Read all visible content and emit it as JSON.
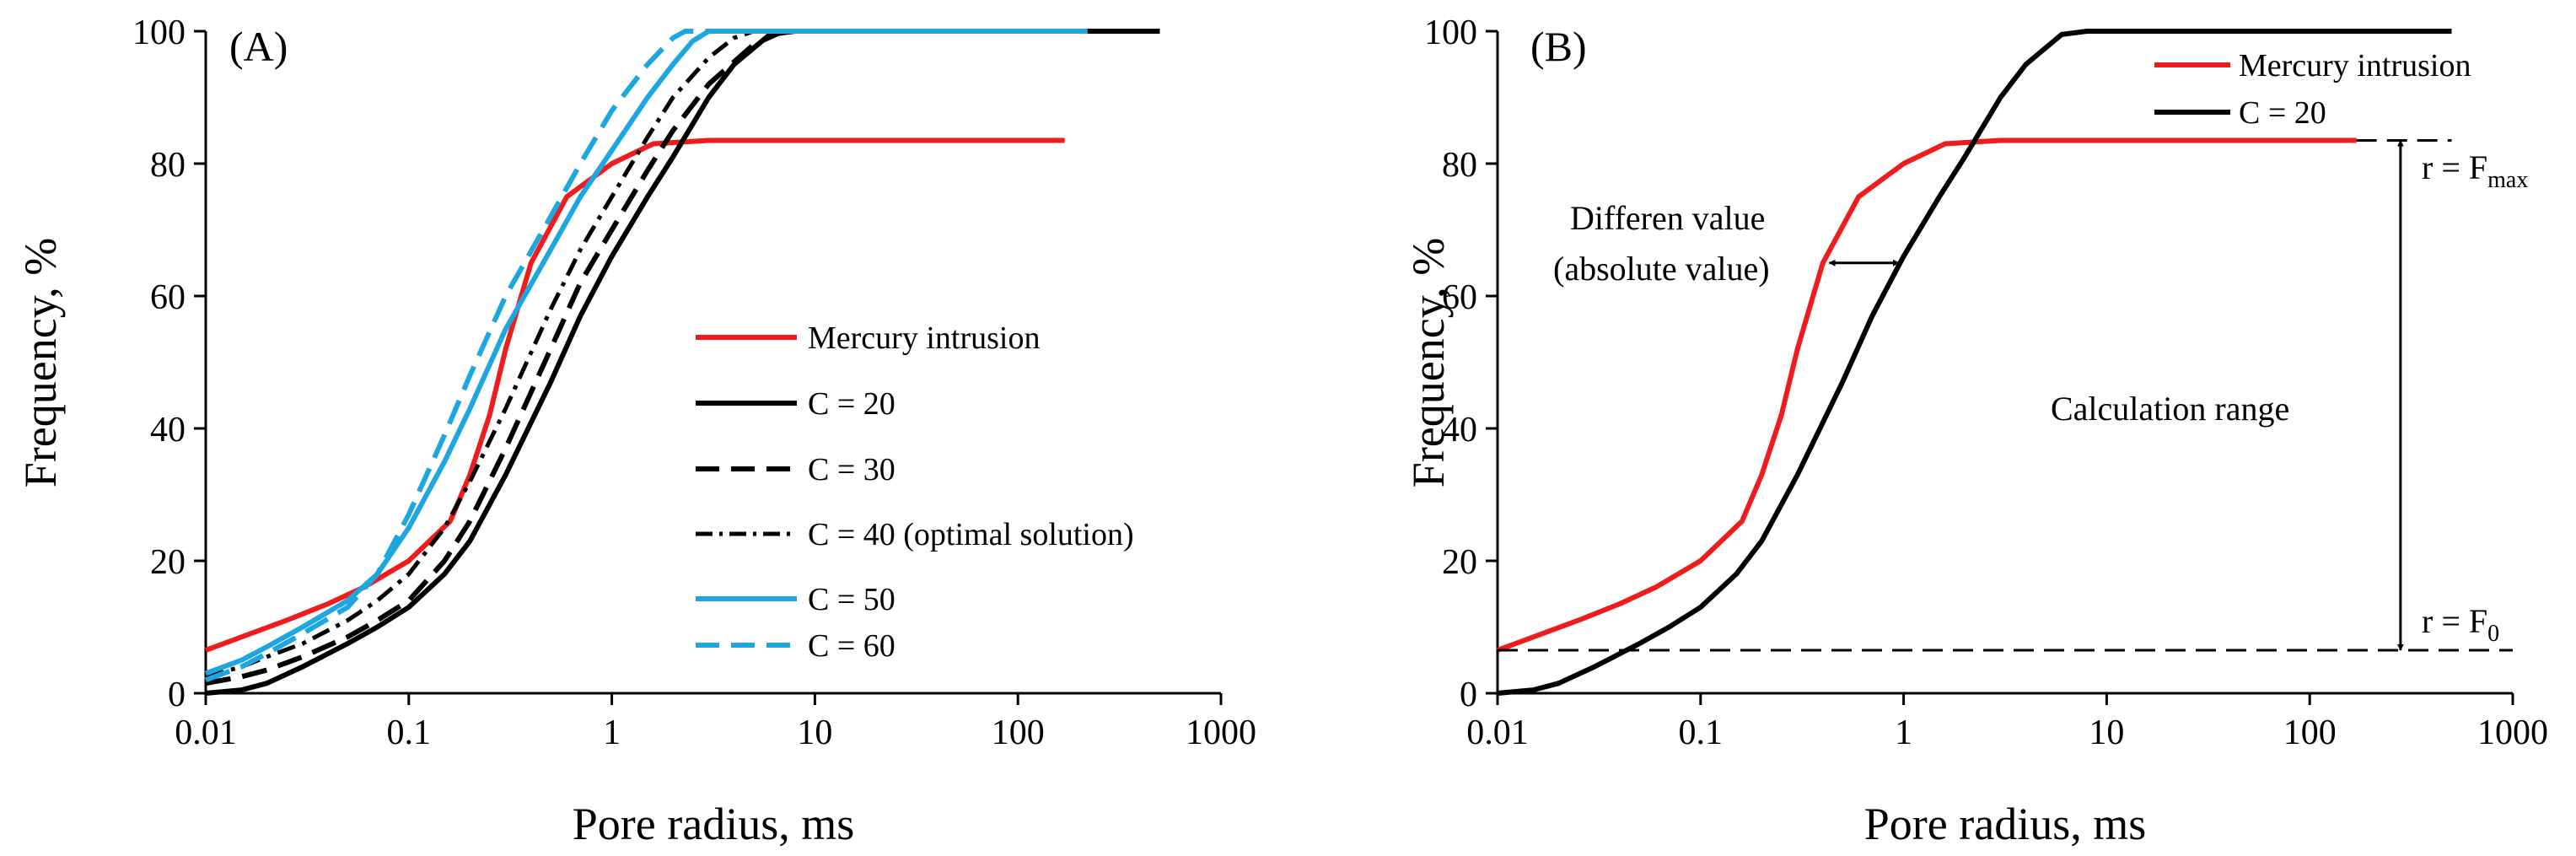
{
  "figure": {
    "panels": [
      "A",
      "B"
    ]
  },
  "colors": {
    "mercury": "#ee1c1c",
    "black": "#000000",
    "cyan": "#1ea6e0"
  },
  "chart_data": [
    {
      "type": "line",
      "panel_label": "(A)",
      "xlabel": "Pore radius, ms",
      "ylabel": "Frequency, %",
      "xscale": "log",
      "xlim": [
        0.01,
        1000
      ],
      "ylim": [
        0,
        100
      ],
      "x_ticks": [
        "0.01",
        "0.1",
        "1",
        "10",
        "100",
        "1000"
      ],
      "y_ticks": [
        "0",
        "20",
        "40",
        "60",
        "80",
        "100"
      ],
      "legend_position": "lower-right",
      "series": [
        {
          "name": "Mercury intrusion",
          "color": "#ee1c1c",
          "style": "solid",
          "x": [
            0.01,
            0.015,
            0.025,
            0.04,
            0.06,
            0.1,
            0.16,
            0.2,
            0.25,
            0.3,
            0.4,
            0.6,
            1.0,
            1.6,
            3,
            10,
            50,
            170
          ],
          "y": [
            6.5,
            8.5,
            11,
            13.5,
            16,
            20,
            26,
            33,
            42,
            52,
            65,
            75,
            80,
            83,
            83.5,
            83.5,
            83.5,
            83.5
          ]
        },
        {
          "name": "C = 20",
          "color": "#000000",
          "style": "solid",
          "x": [
            0.01,
            0.015,
            0.02,
            0.03,
            0.05,
            0.07,
            0.1,
            0.15,
            0.2,
            0.3,
            0.5,
            0.7,
            1.0,
            1.5,
            2.0,
            3.0,
            4.0,
            6.0,
            8.0,
            20,
            100,
            500
          ],
          "y": [
            0,
            0.5,
            1.5,
            4,
            7.5,
            10,
            13,
            18,
            23,
            33,
            47,
            57,
            66,
            75,
            81,
            90,
            95,
            99.5,
            100,
            100,
            100,
            100
          ]
        },
        {
          "name": "C = 30",
          "color": "#000000",
          "style": "dash",
          "x": [
            0.01,
            0.015,
            0.02,
            0.03,
            0.05,
            0.07,
            0.1,
            0.15,
            0.2,
            0.3,
            0.5,
            0.7,
            1.0,
            1.5,
            2.0,
            3.0,
            5.0,
            7.0,
            10,
            100,
            500
          ],
          "y": [
            1.5,
            2.5,
            3.5,
            5.5,
            8.5,
            11,
            14,
            20,
            26,
            37,
            52,
            62,
            70,
            79,
            85,
            92,
            98,
            100,
            100,
            100,
            100
          ]
        },
        {
          "name": "C = 40 (optimal solution)",
          "color": "#000000",
          "style": "dashdot",
          "x": [
            0.01,
            0.015,
            0.02,
            0.03,
            0.05,
            0.07,
            0.1,
            0.15,
            0.2,
            0.3,
            0.5,
            0.7,
            1.0,
            1.5,
            2.0,
            3.0,
            4.0,
            5.0,
            10,
            100,
            500
          ],
          "y": [
            2.5,
            4,
            5.5,
            7.5,
            11,
            14,
            18,
            25,
            32,
            43,
            58,
            67,
            75,
            84,
            90,
            96,
            99,
            100,
            100,
            100,
            100
          ]
        },
        {
          "name": "C = 50",
          "color": "#1ea6e0",
          "style": "solid",
          "x": [
            0.01,
            0.015,
            0.02,
            0.03,
            0.05,
            0.07,
            0.1,
            0.15,
            0.2,
            0.3,
            0.5,
            0.7,
            1.0,
            1.5,
            2.0,
            2.5,
            3.0,
            10,
            100,
            220
          ],
          "y": [
            3,
            5,
            7,
            10,
            14,
            18,
            25,
            35,
            43,
            55,
            67,
            75,
            82,
            90,
            95,
            98.5,
            100,
            100,
            100,
            100
          ]
        },
        {
          "name": "C = 60",
          "color": "#1ea6e0",
          "style": "dash",
          "x": [
            0.01,
            0.015,
            0.02,
            0.03,
            0.05,
            0.07,
            0.1,
            0.15,
            0.2,
            0.3,
            0.5,
            0.7,
            1.0,
            1.5,
            2.0,
            2.3,
            10,
            100,
            220
          ],
          "y": [
            2,
            4,
            6,
            9,
            13,
            18,
            27,
            39,
            48,
            60,
            72,
            80,
            88,
            95,
            99,
            100,
            100,
            100,
            100
          ]
        }
      ]
    },
    {
      "type": "line",
      "panel_label": "(B)",
      "xlabel": "Pore radius, ms",
      "ylabel": "Frequency, %",
      "xscale": "log",
      "xlim": [
        0.01,
        1000
      ],
      "ylim": [
        0,
        100
      ],
      "x_ticks": [
        "0.01",
        "0.1",
        "1",
        "10",
        "100",
        "1000"
      ],
      "y_ticks": [
        "0",
        "20",
        "40",
        "60",
        "80",
        "100"
      ],
      "legend_position": "top-right",
      "series": [
        {
          "name": "Mercury intrusion",
          "color": "#ee1c1c",
          "style": "solid",
          "x": [
            0.01,
            0.015,
            0.025,
            0.04,
            0.06,
            0.1,
            0.16,
            0.2,
            0.25,
            0.3,
            0.4,
            0.6,
            1.0,
            1.6,
            3,
            10,
            50,
            170
          ],
          "y": [
            6.5,
            8.5,
            11,
            13.5,
            16,
            20,
            26,
            33,
            42,
            52,
            65,
            75,
            80,
            83,
            83.5,
            83.5,
            83.5,
            83.5
          ]
        },
        {
          "name": "C = 20",
          "color": "#000000",
          "style": "solid",
          "x": [
            0.01,
            0.015,
            0.02,
            0.03,
            0.05,
            0.07,
            0.1,
            0.15,
            0.2,
            0.3,
            0.5,
            0.7,
            1.0,
            1.5,
            2.0,
            3.0,
            4.0,
            6.0,
            8.0,
            20,
            100,
            500
          ],
          "y": [
            0,
            0.5,
            1.5,
            4,
            7.5,
            10,
            13,
            18,
            23,
            33,
            47,
            57,
            66,
            75,
            81,
            90,
            95,
            99.5,
            100,
            100,
            100,
            100
          ]
        }
      ],
      "annotations": {
        "difference_label_line1": "Differen value",
        "difference_label_line2": "(absolute value)",
        "difference_arrow_y": 65,
        "difference_arrow_x": [
          0.43,
          0.95
        ],
        "range_label": "Calculation range",
        "range_arrow_x": 280,
        "range_top_y": 83.5,
        "range_bottom_y": 6.5,
        "fmax_prefix": "r = F",
        "fmax_sub": "max",
        "f0_prefix": "r = F",
        "f0_sub": "0",
        "baseline_y": 6.5,
        "top_line_y": 83.5,
        "top_line_x": [
          170,
          500
        ]
      }
    }
  ]
}
